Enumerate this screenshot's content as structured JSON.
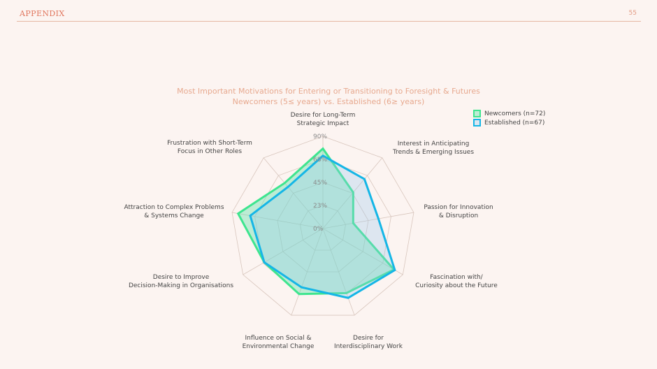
{
  "header": {
    "section": "APPENDIX",
    "page_number": "55"
  },
  "chart_data": {
    "type": "radar",
    "title": "Most Important Motivations for Entering or Transitioning to Foresight & Futures",
    "subtitle": "Newcomers (5≤ years) vs. Established (6≥ years)",
    "axes": [
      [
        "Desire for Long-Term",
        "Strategic Impact"
      ],
      [
        "Interest in Anticipating",
        "Trends & Emerging Issues"
      ],
      [
        "Passion for Innovation",
        "& Disruption"
      ],
      [
        "Fascination with/",
        "Curiosity about the Future"
      ],
      [
        "Desire for",
        "Interdisciplinary Work"
      ],
      [
        "Influence on Social &",
        "Environmental Change"
      ],
      [
        "Desire to Improve",
        "Decision-Making in Organisations"
      ],
      [
        "Attraction to Complex Problems",
        "& Systems Change"
      ],
      [
        "Frustration with Short-Term",
        "Focus in Other Roles"
      ]
    ],
    "radial_ticks": [
      "0%",
      "23%",
      "45%",
      "68%",
      "90%"
    ],
    "rmax": 90,
    "series": [
      {
        "name": "Newcomers (n=72)",
        "color": "#3ee58f",
        "fill": "rgba(95,225,170,0.40)",
        "values": [
          78,
          46,
          30,
          80,
          67,
          68,
          66,
          84,
          58
        ]
      },
      {
        "name": "Established (n=67)",
        "color": "#15b6e6",
        "fill": "rgba(150,200,238,0.30)",
        "values": [
          71,
          63,
          55,
          81,
          72,
          61,
          66,
          72,
          53
        ]
      }
    ]
  }
}
